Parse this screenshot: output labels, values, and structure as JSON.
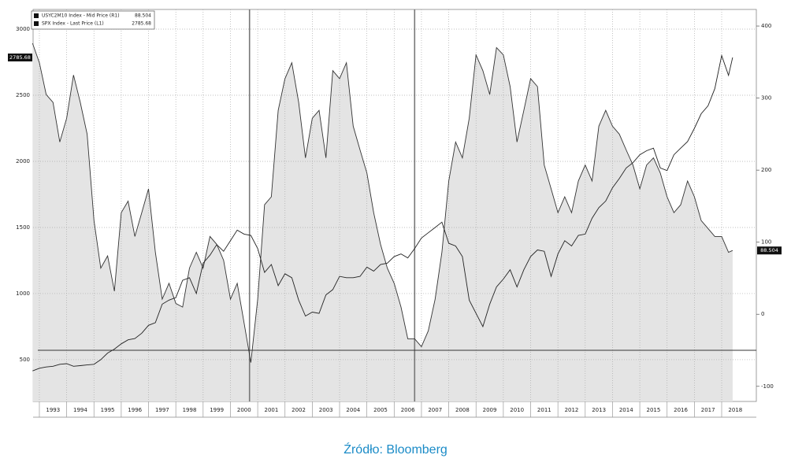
{
  "chart_data": {
    "type": "line",
    "source": "Źródło: Bloomberg",
    "x": [
      1992.75,
      1993,
      1993.25,
      1993.5,
      1993.75,
      1994,
      1994.25,
      1994.5,
      1994.75,
      1995,
      1995.25,
      1995.5,
      1995.75,
      1996,
      1996.25,
      1996.5,
      1996.75,
      1997,
      1997.25,
      1997.5,
      1997.75,
      1998,
      1998.25,
      1998.5,
      1998.75,
      1999,
      1999.25,
      1999.5,
      1999.75,
      2000,
      2000.25,
      2000.5,
      2000.75,
      2001,
      2001.25,
      2001.5,
      2001.75,
      2002,
      2002.25,
      2002.5,
      2002.75,
      2003,
      2003.25,
      2003.5,
      2003.75,
      2004,
      2004.25,
      2004.5,
      2004.75,
      2005,
      2005.25,
      2005.5,
      2005.75,
      2006,
      2006.25,
      2006.5,
      2006.75,
      2007,
      2007.25,
      2007.5,
      2007.75,
      2008,
      2008.25,
      2008.5,
      2008.75,
      2009,
      2009.25,
      2009.5,
      2009.75,
      2010,
      2010.25,
      2010.5,
      2010.75,
      2011,
      2011.25,
      2011.5,
      2011.75,
      2012,
      2012.25,
      2012.5,
      2012.75,
      2013,
      2013.25,
      2013.5,
      2013.75,
      2014,
      2014.25,
      2014.5,
      2014.75,
      2015,
      2015.25,
      2015.5,
      2015.75,
      2016,
      2016.25,
      2016.5,
      2016.75,
      2017,
      2017.25,
      2017.5,
      2017.75,
      2018,
      2018.25,
      2018.4
    ],
    "series": [
      {
        "name": "USYC2M10 Index - Mid Price (R1)",
        "color": "#333333",
        "fill": "#e4e4e4",
        "axis": "y2",
        "values": [
          376,
          349,
          305,
          294,
          239,
          272,
          332,
          294,
          250,
          130,
          64,
          81,
          32,
          141,
          157,
          108,
          141,
          174,
          86,
          21,
          43,
          15,
          10,
          64,
          86,
          64,
          108,
          97,
          75,
          21,
          43,
          -12,
          -67,
          21,
          152,
          163,
          283,
          327,
          349,
          294,
          217,
          272,
          283,
          217,
          338,
          327,
          349,
          261,
          228,
          196,
          141,
          97,
          64,
          43,
          10,
          -34,
          -34,
          -45,
          -23,
          21,
          86,
          185,
          239,
          217,
          272,
          360,
          338,
          305,
          370,
          360,
          316,
          239,
          283,
          327,
          316,
          207,
          174,
          141,
          163,
          141,
          185,
          207,
          185,
          261,
          283,
          261,
          250,
          228,
          207,
          174,
          207,
          217,
          196,
          163,
          141,
          152,
          185,
          163,
          130,
          119,
          108,
          108,
          86,
          88.504
        ]
      },
      {
        "name": "SPX Index - Last Price (L1)",
        "color": "#222222",
        "values": [
          415,
          435,
          445,
          450,
          465,
          470,
          450,
          455,
          460,
          465,
          500,
          550,
          580,
          620,
          650,
          660,
          700,
          760,
          780,
          920,
          950,
          970,
          1100,
          1120,
          1000,
          1230,
          1290,
          1370,
          1320,
          1400,
          1480,
          1450,
          1440,
          1340,
          1160,
          1220,
          1060,
          1150,
          1120,
          950,
          830,
          860,
          850,
          990,
          1030,
          1130,
          1120,
          1120,
          1130,
          1200,
          1170,
          1220,
          1230,
          1280,
          1300,
          1270,
          1340,
          1420,
          1460,
          1500,
          1540,
          1380,
          1360,
          1280,
          950,
          850,
          750,
          920,
          1050,
          1110,
          1180,
          1050,
          1180,
          1280,
          1330,
          1320,
          1130,
          1300,
          1400,
          1360,
          1440,
          1450,
          1570,
          1650,
          1700,
          1800,
          1870,
          1950,
          1990,
          2050,
          2080,
          2100,
          1950,
          1930,
          2050,
          2100,
          2150,
          2250,
          2360,
          2420,
          2550,
          2800,
          2650,
          2785.68
        ]
      }
    ],
    "xlim": [
      1992.77,
      2019.27
    ],
    "xticks": [
      1993,
      1994,
      1995,
      1996,
      1997,
      1998,
      1999,
      2000,
      2001,
      2002,
      2003,
      2004,
      2005,
      2006,
      2007,
      2008,
      2009,
      2010,
      2011,
      2012,
      2013,
      2014,
      2015,
      2016,
      2017,
      2018
    ],
    "ylim": [
      184,
      3149
    ],
    "yticks": [
      500,
      1000,
      1500,
      2000,
      2500,
      3000
    ],
    "y2lim": [
      -121,
      423
    ],
    "y2ticks": [
      -100,
      0,
      100,
      200,
      300,
      400
    ],
    "vlines": [
      2000.7,
      2006.75
    ],
    "hline_y2": -50,
    "grid": true
  }
}
